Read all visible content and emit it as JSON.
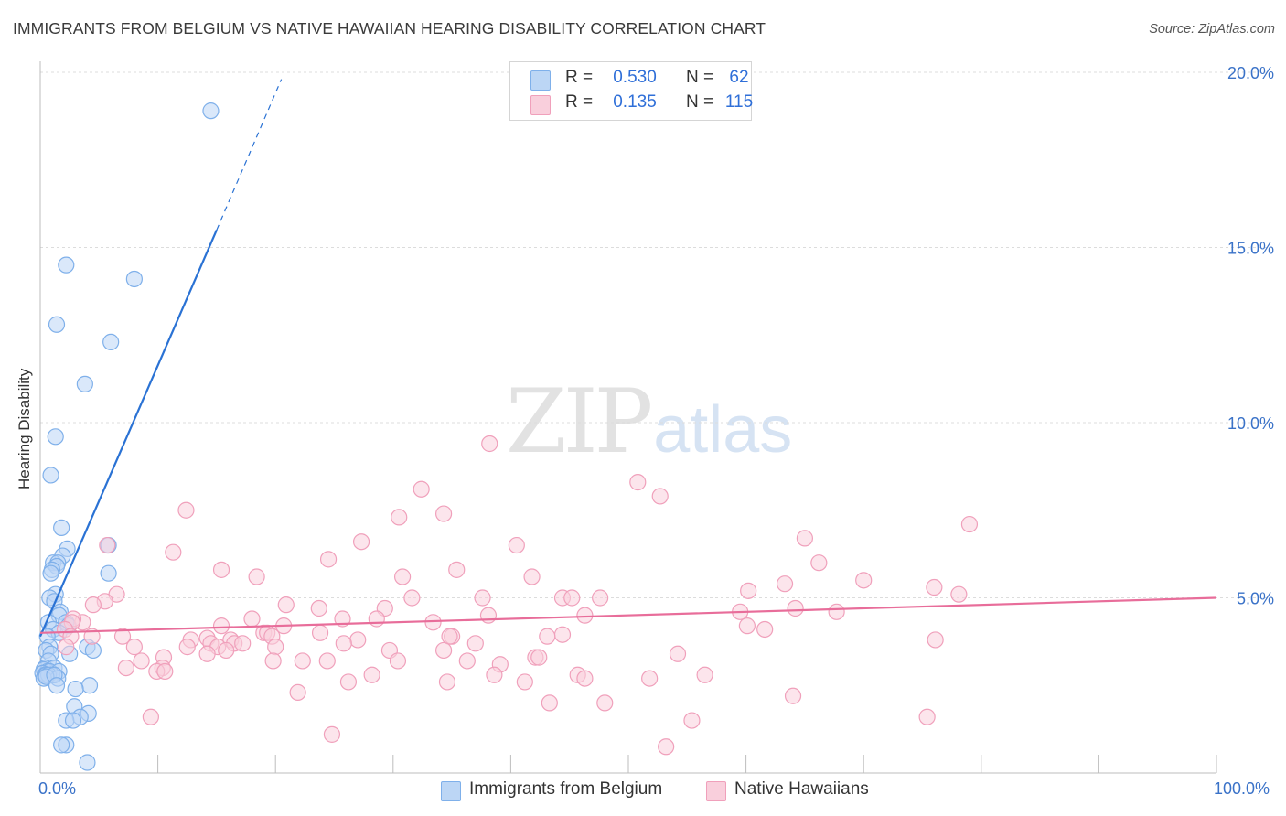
{
  "chart_data": {
    "type": "scatter",
    "title": "IMMIGRANTS FROM BELGIUM VS NATIVE HAWAIIAN HEARING DISABILITY CORRELATION CHART",
    "source": "Source: ZipAtlas.com",
    "ylabel": "Hearing Disability",
    "xlabel": "",
    "xlim": [
      0,
      100
    ],
    "ylim": [
      0,
      20
    ],
    "x_tick_labels": {
      "left": "0.0%",
      "right": "100.0%"
    },
    "y_ticks": [
      {
        "value": 5,
        "label": "5.0%"
      },
      {
        "value": 10,
        "label": "10.0%"
      },
      {
        "value": 15,
        "label": "15.0%"
      },
      {
        "value": 20,
        "label": "20.0%"
      }
    ],
    "watermark": {
      "part1": "ZIP",
      "part2": "atlas"
    },
    "series": [
      {
        "name": "Immigrants from Belgium",
        "color": "#7fb0ea",
        "fill": "#bcd6f5",
        "line_color": "#2a72d4",
        "r_label": "R =",
        "r_value": "0.530",
        "n_label": "N =",
        "n_value": "62",
        "trend": {
          "x0": 0,
          "y0": 3.9,
          "x1": 15,
          "y1": 15.5,
          "x_dash_end": 20.5,
          "y_dash_end": 19.8
        },
        "points": [
          [
            14.5,
            18.9
          ],
          [
            2.2,
            14.5
          ],
          [
            8.0,
            14.1
          ],
          [
            1.4,
            12.8
          ],
          [
            6.0,
            12.3
          ],
          [
            3.8,
            11.1
          ],
          [
            1.3,
            9.6
          ],
          [
            0.9,
            8.5
          ],
          [
            1.8,
            7.0
          ],
          [
            2.3,
            6.4
          ],
          [
            1.9,
            6.2
          ],
          [
            5.8,
            6.5
          ],
          [
            1.1,
            6.0
          ],
          [
            1.5,
            6.0
          ],
          [
            1.4,
            5.9
          ],
          [
            1.0,
            5.8
          ],
          [
            0.9,
            5.7
          ],
          [
            5.8,
            5.7
          ],
          [
            1.3,
            5.1
          ],
          [
            0.8,
            5.0
          ],
          [
            1.2,
            4.9
          ],
          [
            1.7,
            4.6
          ],
          [
            1.6,
            4.5
          ],
          [
            0.7,
            4.3
          ],
          [
            2.2,
            4.3
          ],
          [
            2.4,
            4.2
          ],
          [
            1.1,
            4.1
          ],
          [
            1.6,
            4.0
          ],
          [
            0.6,
            3.9
          ],
          [
            0.8,
            3.6
          ],
          [
            4.0,
            3.6
          ],
          [
            4.5,
            3.5
          ],
          [
            0.5,
            3.5
          ],
          [
            0.9,
            3.4
          ],
          [
            2.5,
            3.4
          ],
          [
            0.7,
            3.2
          ],
          [
            0.4,
            3.0
          ],
          [
            1.2,
            3.0
          ],
          [
            0.3,
            2.95
          ],
          [
            0.6,
            2.9
          ],
          [
            0.8,
            2.9
          ],
          [
            1.6,
            2.9
          ],
          [
            0.2,
            2.85
          ],
          [
            0.4,
            2.8
          ],
          [
            1.0,
            2.8
          ],
          [
            0.5,
            2.8
          ],
          [
            0.7,
            2.8
          ],
          [
            1.5,
            2.7
          ],
          [
            0.3,
            2.7
          ],
          [
            0.5,
            2.75
          ],
          [
            1.2,
            2.8
          ],
          [
            4.2,
            2.5
          ],
          [
            3.0,
            2.4
          ],
          [
            2.9,
            1.9
          ],
          [
            4.1,
            1.7
          ],
          [
            3.4,
            1.6
          ],
          [
            2.2,
            1.5
          ],
          [
            2.8,
            1.5
          ],
          [
            2.2,
            0.8
          ],
          [
            1.8,
            0.8
          ],
          [
            4.0,
            0.3
          ],
          [
            1.4,
            2.5
          ]
        ]
      },
      {
        "name": "Native Hawaiians",
        "color": "#f0a0bb",
        "fill": "#f9cfdc",
        "line_color": "#e86d9a",
        "r_label": "R =",
        "r_value": "0.135",
        "n_label": "N =",
        "n_value": "115",
        "trend": {
          "x0": 0,
          "y0": 4.0,
          "x1": 100,
          "y1": 5.0
        },
        "points": [
          [
            38.2,
            9.4
          ],
          [
            50.8,
            8.3
          ],
          [
            32.4,
            8.1
          ],
          [
            52.7,
            7.9
          ],
          [
            12.4,
            7.5
          ],
          [
            34.3,
            7.4
          ],
          [
            30.5,
            7.3
          ],
          [
            79.0,
            7.1
          ],
          [
            65.0,
            6.7
          ],
          [
            27.3,
            6.6
          ],
          [
            40.5,
            6.5
          ],
          [
            5.7,
            6.5
          ],
          [
            11.3,
            6.3
          ],
          [
            24.5,
            6.1
          ],
          [
            66.2,
            6.0
          ],
          [
            15.4,
            5.8
          ],
          [
            35.4,
            5.8
          ],
          [
            18.4,
            5.6
          ],
          [
            30.8,
            5.6
          ],
          [
            41.8,
            5.6
          ],
          [
            70.0,
            5.5
          ],
          [
            63.3,
            5.4
          ],
          [
            76.0,
            5.3
          ],
          [
            60.2,
            5.2
          ],
          [
            78.1,
            5.1
          ],
          [
            6.5,
            5.1
          ],
          [
            37.6,
            5.0
          ],
          [
            47.6,
            5.0
          ],
          [
            44.4,
            5.0
          ],
          [
            31.6,
            5.0
          ],
          [
            45.2,
            5.0
          ],
          [
            5.5,
            4.9
          ],
          [
            20.9,
            4.8
          ],
          [
            4.5,
            4.8
          ],
          [
            29.3,
            4.7
          ],
          [
            23.7,
            4.7
          ],
          [
            59.5,
            4.6
          ],
          [
            67.7,
            4.6
          ],
          [
            64.2,
            4.7
          ],
          [
            46.3,
            4.5
          ],
          [
            38.1,
            4.5
          ],
          [
            28.6,
            4.4
          ],
          [
            18.0,
            4.4
          ],
          [
            25.7,
            4.4
          ],
          [
            33.4,
            4.3
          ],
          [
            3.6,
            4.3
          ],
          [
            2.8,
            4.4
          ],
          [
            2.7,
            4.3
          ],
          [
            60.1,
            4.2
          ],
          [
            20.7,
            4.2
          ],
          [
            15.4,
            4.2
          ],
          [
            61.6,
            4.1
          ],
          [
            2.1,
            4.1
          ],
          [
            19.0,
            4.0
          ],
          [
            23.8,
            4.0
          ],
          [
            19.3,
            4.0
          ],
          [
            44.4,
            3.95
          ],
          [
            35.0,
            3.9
          ],
          [
            43.1,
            3.9
          ],
          [
            34.8,
            3.9
          ],
          [
            4.4,
            3.9
          ],
          [
            2.6,
            3.9
          ],
          [
            19.7,
            3.9
          ],
          [
            7.0,
            3.9
          ],
          [
            14.2,
            3.85
          ],
          [
            16.2,
            3.8
          ],
          [
            27.0,
            3.8
          ],
          [
            12.8,
            3.8
          ],
          [
            25.8,
            3.7
          ],
          [
            16.5,
            3.7
          ],
          [
            14.5,
            3.7
          ],
          [
            17.2,
            3.7
          ],
          [
            37.0,
            3.7
          ],
          [
            76.1,
            3.8
          ],
          [
            8.0,
            3.6
          ],
          [
            12.5,
            3.6
          ],
          [
            15.1,
            3.6
          ],
          [
            2.2,
            3.6
          ],
          [
            20.0,
            3.6
          ],
          [
            15.8,
            3.5
          ],
          [
            29.7,
            3.5
          ],
          [
            34.3,
            3.5
          ],
          [
            54.2,
            3.4
          ],
          [
            42.1,
            3.3
          ],
          [
            14.2,
            3.4
          ],
          [
            10.5,
            3.3
          ],
          [
            22.3,
            3.2
          ],
          [
            36.3,
            3.2
          ],
          [
            42.4,
            3.3
          ],
          [
            30.4,
            3.2
          ],
          [
            19.8,
            3.2
          ],
          [
            8.6,
            3.2
          ],
          [
            24.4,
            3.2
          ],
          [
            10.4,
            3.0
          ],
          [
            7.3,
            3.0
          ],
          [
            9.9,
            2.9
          ],
          [
            10.6,
            2.9
          ],
          [
            39.1,
            3.1
          ],
          [
            45.7,
            2.8
          ],
          [
            56.5,
            2.8
          ],
          [
            28.2,
            2.8
          ],
          [
            38.6,
            2.8
          ],
          [
            51.8,
            2.7
          ],
          [
            34.6,
            2.6
          ],
          [
            46.3,
            2.7
          ],
          [
            41.2,
            2.6
          ],
          [
            26.2,
            2.6
          ],
          [
            21.9,
            2.3
          ],
          [
            64.0,
            2.2
          ],
          [
            43.3,
            2.0
          ],
          [
            48.0,
            2.0
          ],
          [
            9.4,
            1.6
          ],
          [
            75.4,
            1.6
          ],
          [
            55.4,
            1.5
          ],
          [
            24.8,
            1.1
          ],
          [
            53.2,
            0.75
          ]
        ]
      }
    ]
  }
}
